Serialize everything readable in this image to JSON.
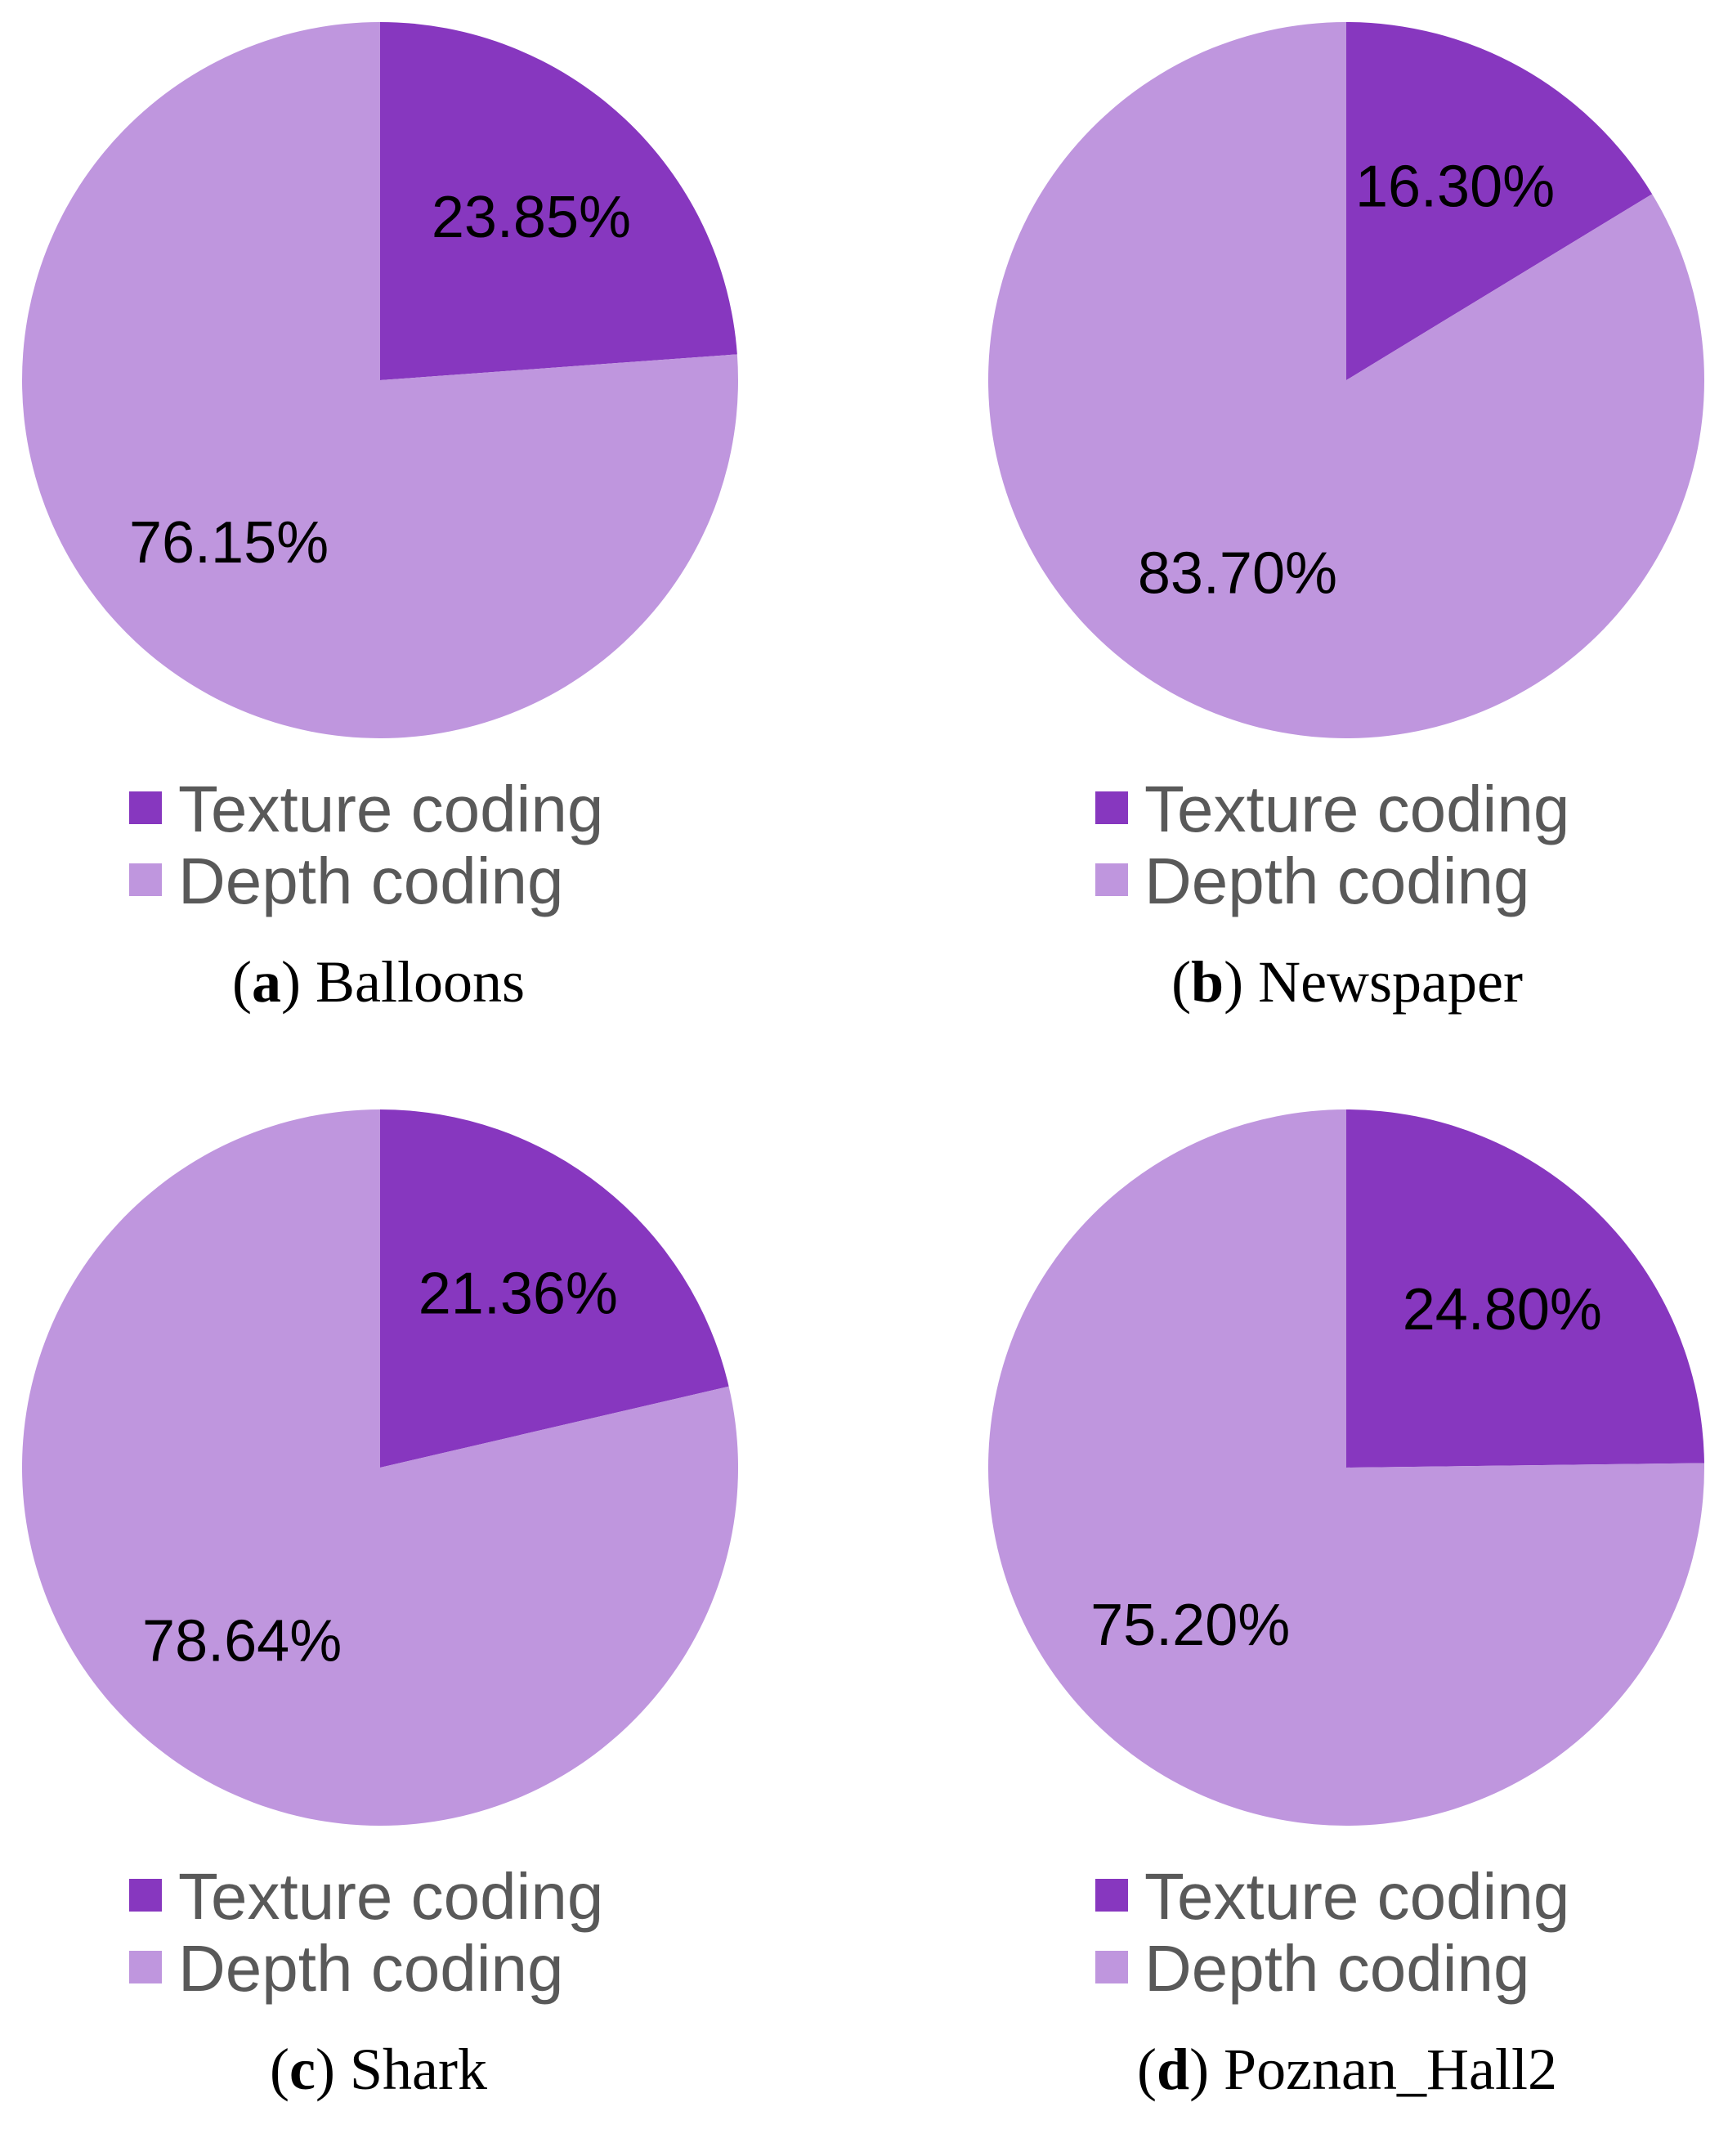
{
  "colors": {
    "texture": "#8737bf",
    "depth": "#bf96de"
  },
  "legend": {
    "texture_label": "Texture coding",
    "depth_label": "Depth coding"
  },
  "chart_data": [
    {
      "type": "pie",
      "caption_letter": "a",
      "caption_text": "Balloons",
      "slices": [
        {
          "name": "Texture coding",
          "value": 23.85,
          "label": "23.85%"
        },
        {
          "name": "Depth coding",
          "value": 76.15,
          "label": "76.15%"
        }
      ]
    },
    {
      "type": "pie",
      "caption_letter": "b",
      "caption_text": "Newspaper",
      "slices": [
        {
          "name": "Texture coding",
          "value": 16.3,
          "label": "16.30%"
        },
        {
          "name": "Depth coding",
          "value": 83.7,
          "label": "83.70%"
        }
      ]
    },
    {
      "type": "pie",
      "caption_letter": "c",
      "caption_text": "Shark",
      "slices": [
        {
          "name": "Texture coding",
          "value": 21.36,
          "label": "21.36%"
        },
        {
          "name": "Depth coding",
          "value": 78.64,
          "label": "78.64%"
        }
      ]
    },
    {
      "type": "pie",
      "caption_letter": "d",
      "caption_text": "Poznan_Hall2",
      "slices": [
        {
          "name": "Texture coding",
          "value": 24.8,
          "label": "24.80%"
        },
        {
          "name": "Depth coding",
          "value": 75.2,
          "label": "75.20%"
        }
      ]
    }
  ]
}
